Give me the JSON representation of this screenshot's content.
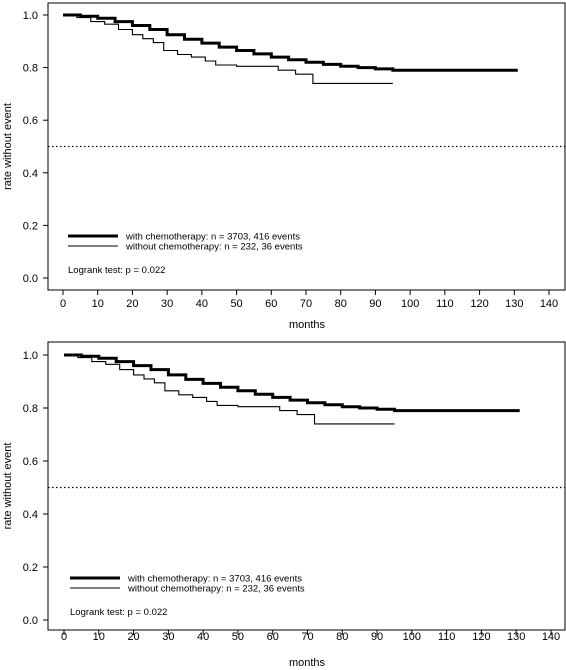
{
  "chart_data": [
    {
      "type": "line",
      "title": "",
      "xlabel": "months",
      "ylabel": "rate without event",
      "xlim": [
        0,
        140
      ],
      "ylim": [
        0,
        1
      ],
      "x_ticks": [
        "0",
        "10",
        "20",
        "30",
        "40",
        "50",
        "60",
        "70",
        "80",
        "90",
        "100",
        "110",
        "120",
        "130",
        "140"
      ],
      "y_ticks": [
        "0.0",
        "0.2",
        "0.4",
        "0.6",
        "0.8",
        "1.0"
      ],
      "reference_line": {
        "y": 0.5,
        "style": "dotted"
      },
      "grid": false,
      "legend_position": "bottom-left",
      "annotation": "Logrank test: p = 0.022",
      "series": [
        {
          "name": "with chemotherapy: n = 3703, 416 events",
          "style": "thick",
          "points": [
            [
              0,
              1.0
            ],
            [
              5,
              0.995
            ],
            [
              10,
              0.988
            ],
            [
              15,
              0.975
            ],
            [
              20,
              0.96
            ],
            [
              25,
              0.945
            ],
            [
              30,
              0.925
            ],
            [
              35,
              0.908
            ],
            [
              40,
              0.893
            ],
            [
              45,
              0.878
            ],
            [
              50,
              0.865
            ],
            [
              55,
              0.852
            ],
            [
              60,
              0.84
            ],
            [
              65,
              0.83
            ],
            [
              70,
              0.82
            ],
            [
              75,
              0.812
            ],
            [
              80,
              0.805
            ],
            [
              85,
              0.8
            ],
            [
              90,
              0.795
            ],
            [
              95,
              0.79
            ],
            [
              100,
              0.79
            ],
            [
              131,
              0.79
            ]
          ]
        },
        {
          "name": "without chemotherapy: n = 232, 36 events",
          "style": "thin",
          "points": [
            [
              0,
              1.0
            ],
            [
              4,
              0.99
            ],
            [
              8,
              0.975
            ],
            [
              12,
              0.965
            ],
            [
              16,
              0.945
            ],
            [
              20,
              0.925
            ],
            [
              23,
              0.91
            ],
            [
              26,
              0.895
            ],
            [
              29,
              0.865
            ],
            [
              33,
              0.85
            ],
            [
              37,
              0.84
            ],
            [
              41,
              0.825
            ],
            [
              44,
              0.81
            ],
            [
              50,
              0.805
            ],
            [
              57,
              0.805
            ],
            [
              62,
              0.79
            ],
            [
              67,
              0.775
            ],
            [
              72,
              0.74
            ],
            [
              95,
              0.74
            ]
          ]
        }
      ]
    },
    {
      "type": "line",
      "title": "",
      "xlabel": "months",
      "ylabel": "rate without event",
      "xlim": [
        0,
        140
      ],
      "ylim": [
        0,
        1
      ],
      "x_ticks": [
        "0",
        "10",
        "20",
        "30",
        "40",
        "50",
        "60",
        "70",
        "80",
        "90",
        "100",
        "110",
        "120",
        "130",
        "140"
      ],
      "y_ticks": [
        "0.0",
        "0.2",
        "0.4",
        "0.6",
        "0.8",
        "1.0"
      ],
      "reference_line": {
        "y": 0.5,
        "style": "dotted"
      },
      "grid": false,
      "legend_position": "bottom-left",
      "annotation": "Logrank test: p = 0.022",
      "series": [
        {
          "name": "with chemotherapy: n = 3703, 416 events",
          "style": "thick",
          "points": [
            [
              0,
              1.0
            ],
            [
              5,
              0.995
            ],
            [
              10,
              0.988
            ],
            [
              15,
              0.975
            ],
            [
              20,
              0.96
            ],
            [
              25,
              0.945
            ],
            [
              30,
              0.925
            ],
            [
              35,
              0.908
            ],
            [
              40,
              0.893
            ],
            [
              45,
              0.878
            ],
            [
              50,
              0.865
            ],
            [
              55,
              0.852
            ],
            [
              60,
              0.84
            ],
            [
              65,
              0.83
            ],
            [
              70,
              0.82
            ],
            [
              75,
              0.812
            ],
            [
              80,
              0.805
            ],
            [
              85,
              0.8
            ],
            [
              90,
              0.795
            ],
            [
              95,
              0.79
            ],
            [
              100,
              0.79
            ],
            [
              131,
              0.79
            ]
          ]
        },
        {
          "name": "without chemotherapy: n = 232, 36 events",
          "style": "thin",
          "points": [
            [
              0,
              1.0
            ],
            [
              4,
              0.99
            ],
            [
              8,
              0.975
            ],
            [
              12,
              0.965
            ],
            [
              16,
              0.945
            ],
            [
              20,
              0.925
            ],
            [
              23,
              0.91
            ],
            [
              26,
              0.895
            ],
            [
              29,
              0.865
            ],
            [
              33,
              0.85
            ],
            [
              37,
              0.84
            ],
            [
              41,
              0.825
            ],
            [
              44,
              0.81
            ],
            [
              50,
              0.805
            ],
            [
              57,
              0.805
            ],
            [
              62,
              0.79
            ],
            [
              67,
              0.775
            ],
            [
              72,
              0.74
            ],
            [
              95,
              0.74
            ]
          ]
        }
      ]
    }
  ]
}
